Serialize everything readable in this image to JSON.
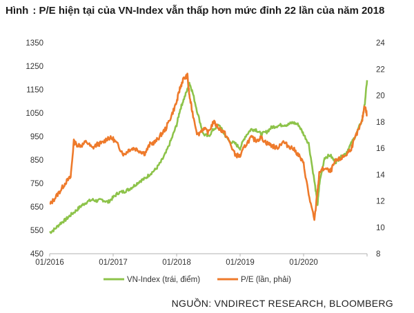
{
  "title": {
    "caption": "Hình",
    "text": ": P/E hiện tại của VN-Index vẫn thấp hơn mức đỉnh 22 lần của năm 2018"
  },
  "source": "NGUỒN: VNDIRECT RESEARCH, BLOOMBERG",
  "colors": {
    "vnindex": "#8dc34a",
    "pe": "#ee7a2b",
    "axis": "#b0b0b0"
  },
  "chart_data": {
    "type": "line",
    "x_ticks": [
      "01/2016",
      "01/2017",
      "01/2018",
      "01/2019",
      "01/2020"
    ],
    "x_range": [
      2016.0,
      2021.0
    ],
    "left_axis": {
      "label": "VN-Index (trái, điểm)",
      "range": [
        450,
        1350
      ],
      "ticks": [
        1350,
        1250,
        1150,
        1050,
        950,
        850,
        750,
        650,
        550,
        450
      ]
    },
    "right_axis": {
      "label": "P/E (lần, phải)",
      "range": [
        8,
        24
      ],
      "ticks": [
        24,
        22,
        20,
        18,
        16,
        14,
        12,
        10,
        8
      ]
    },
    "series": [
      {
        "name": "VN-Index (trái, điểm)",
        "axis": "left",
        "x": [
          2016.0,
          2016.08,
          2016.17,
          2016.25,
          2016.33,
          2016.42,
          2016.5,
          2016.58,
          2016.67,
          2016.75,
          2016.83,
          2016.92,
          2017.0,
          2017.08,
          2017.17,
          2017.25,
          2017.33,
          2017.42,
          2017.5,
          2017.58,
          2017.67,
          2017.75,
          2017.83,
          2017.92,
          2018.0,
          2018.05,
          2018.1,
          2018.17,
          2018.2,
          2018.25,
          2018.33,
          2018.42,
          2018.5,
          2018.58,
          2018.67,
          2018.75,
          2018.83,
          2018.92,
          2019.0,
          2019.08,
          2019.17,
          2019.25,
          2019.33,
          2019.42,
          2019.5,
          2019.58,
          2019.67,
          2019.75,
          2019.83,
          2019.92,
          2020.0,
          2020.08,
          2020.17,
          2020.22,
          2020.25,
          2020.33,
          2020.42,
          2020.5,
          2020.58,
          2020.67,
          2020.75,
          2020.83,
          2020.92,
          2020.96,
          2021.0
        ],
        "values": [
          540,
          555,
          580,
          595,
          615,
          635,
          655,
          670,
          680,
          675,
          680,
          670,
          690,
          710,
          715,
          725,
          740,
          760,
          770,
          790,
          810,
          840,
          880,
          940,
          1000,
          1060,
          1100,
          1150,
          1180,
          1140,
          1050,
          960,
          950,
          980,
          1000,
          960,
          930,
          920,
          900,
          950,
          980,
          980,
          960,
          970,
          990,
          995,
          1000,
          1000,
          1010,
          1000,
          960,
          920,
          760,
          660,
          750,
          860,
          870,
          840,
          860,
          880,
          920,
          960,
          1020,
          1080,
          1190
        ]
      },
      {
        "name": "P/E (lần, phải)",
        "axis": "right",
        "x": [
          2016.0,
          2016.08,
          2016.17,
          2016.25,
          2016.33,
          2016.38,
          2016.42,
          2016.5,
          2016.58,
          2016.67,
          2016.75,
          2016.83,
          2016.92,
          2017.0,
          2017.08,
          2017.17,
          2017.25,
          2017.33,
          2017.42,
          2017.5,
          2017.58,
          2017.67,
          2017.75,
          2017.83,
          2017.92,
          2018.0,
          2018.05,
          2018.1,
          2018.17,
          2018.2,
          2018.25,
          2018.33,
          2018.42,
          2018.5,
          2018.58,
          2018.67,
          2018.75,
          2018.83,
          2018.92,
          2019.0,
          2019.08,
          2019.17,
          2019.25,
          2019.33,
          2019.42,
          2019.5,
          2019.58,
          2019.67,
          2019.75,
          2019.83,
          2019.92,
          2020.0,
          2020.08,
          2020.17,
          2020.22,
          2020.25,
          2020.33,
          2020.42,
          2020.5,
          2020.58,
          2020.67,
          2020.75,
          2020.83,
          2020.92,
          2020.96,
          2021.0
        ],
        "values": [
          11.7,
          12.2,
          12.8,
          13.4,
          13.8,
          16.5,
          16.3,
          16.2,
          16.5,
          16.0,
          16.3,
          16.4,
          16.8,
          16.7,
          16.2,
          15.5,
          15.9,
          16.0,
          15.8,
          15.6,
          16.3,
          16.5,
          17.0,
          17.5,
          18.5,
          19.5,
          20.5,
          21.2,
          21.5,
          20.0,
          18.7,
          17.0,
          17.5,
          17.2,
          18.0,
          17.5,
          17.2,
          16.5,
          15.5,
          15.4,
          16.2,
          16.8,
          16.6,
          16.8,
          16.4,
          16.2,
          16.0,
          16.5,
          16.2,
          16.0,
          15.5,
          14.8,
          12.5,
          10.5,
          12.8,
          14.2,
          14.5,
          14.2,
          15.0,
          15.2,
          15.5,
          16.0,
          17.0,
          18.0,
          19.3,
          18.5
        ]
      }
    ]
  }
}
